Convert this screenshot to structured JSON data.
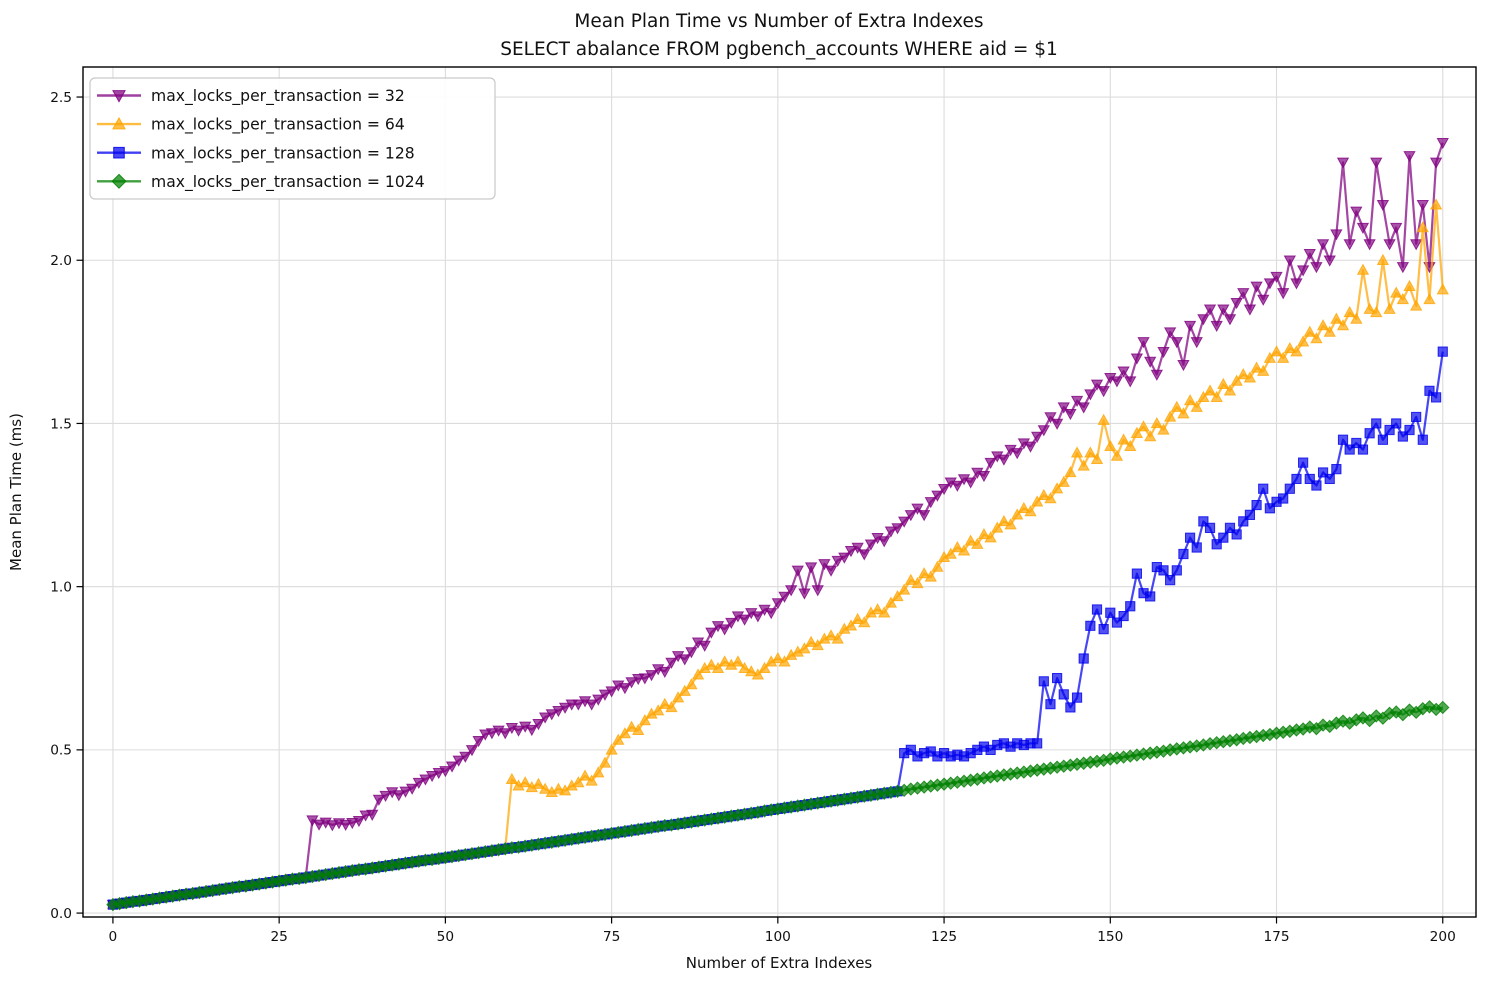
{
  "chart_data": {
    "type": "line",
    "title": "Mean Plan Time vs Number of Extra Indexes",
    "subtitle": "SELECT abalance FROM pgbench_accounts WHERE aid = $1",
    "xlabel": "Number of Extra Indexes",
    "ylabel": "Mean Plan Time (ms)",
    "x_description": "x = integer index 0..200 (number of extra indexes)",
    "xticks": [
      0,
      25,
      50,
      75,
      100,
      125,
      150,
      175,
      200
    ],
    "yticks": [
      0.0,
      0.5,
      1.0,
      1.5,
      2.0,
      2.5
    ],
    "xlim": [
      -4.5,
      205
    ],
    "ylim": [
      -0.012,
      2.592
    ],
    "grid": true,
    "legend_position": "upper left",
    "baseline_note": "All four series share this common linear ramp; each series follows 'baseline' for x < start, then continues with its own 'post_values' from x = start.",
    "baseline": [
      0.026,
      0.029,
      0.032,
      0.035,
      0.037,
      0.04,
      0.043,
      0.046,
      0.049,
      0.052,
      0.055,
      0.058,
      0.06,
      0.063,
      0.066,
      0.069,
      0.072,
      0.075,
      0.078,
      0.081,
      0.083,
      0.086,
      0.089,
      0.092,
      0.095,
      0.098,
      0.101,
      0.104,
      0.106,
      0.109,
      0.112,
      0.115,
      0.118,
      0.121,
      0.124,
      0.127,
      0.13,
      0.133,
      0.135,
      0.138,
      0.141,
      0.144,
      0.147,
      0.15,
      0.153,
      0.156,
      0.159,
      0.162,
      0.164,
      0.167,
      0.17,
      0.173,
      0.176,
      0.179,
      0.182,
      0.185,
      0.188,
      0.191,
      0.194,
      0.197,
      0.2,
      0.202,
      0.205,
      0.208,
      0.211,
      0.214,
      0.217,
      0.22,
      0.223,
      0.226,
      0.229,
      0.232,
      0.235,
      0.238,
      0.241,
      0.244,
      0.247,
      0.25,
      0.253,
      0.256,
      0.259,
      0.262,
      0.265,
      0.268,
      0.27,
      0.273,
      0.276,
      0.279,
      0.282,
      0.285,
      0.288,
      0.291,
      0.294,
      0.297,
      0.3,
      0.303,
      0.306,
      0.309,
      0.313,
      0.316,
      0.319,
      0.322,
      0.325,
      0.328,
      0.331,
      0.334,
      0.337,
      0.34,
      0.343,
      0.346,
      0.349,
      0.352,
      0.355,
      0.358,
      0.361,
      0.364,
      0.367,
      0.37,
      0.373,
      0.376,
      0.38,
      0.383,
      0.386,
      0.389,
      0.392,
      0.395,
      0.398,
      0.401,
      0.404,
      0.407,
      0.41,
      0.414,
      0.417,
      0.42,
      0.423,
      0.426,
      0.429,
      0.432,
      0.435,
      0.438,
      0.441,
      0.444,
      0.447,
      0.45,
      0.453,
      0.456,
      0.459,
      0.462,
      0.465,
      0.468,
      0.472,
      0.475,
      0.478,
      0.481,
      0.484,
      0.487,
      0.49,
      0.493,
      0.496,
      0.5,
      0.503,
      0.506,
      0.509,
      0.512,
      0.515,
      0.519,
      0.522,
      0.525,
      0.528,
      0.531,
      0.535,
      0.538,
      0.541,
      0.544,
      0.547,
      0.551,
      0.554,
      0.557,
      0.561,
      0.564,
      0.567,
      0.57,
      0.574,
      0.577,
      0.58,
      0.583,
      0.587,
      0.59,
      0.593,
      0.597,
      0.6,
      0.603,
      0.607,
      0.61,
      0.614,
      0.617,
      0.62,
      0.624,
      0.627,
      0.63,
      0.634
    ],
    "series": [
      {
        "label": "max_locks_per_transaction = 32",
        "color": "#800080",
        "marker": "triangle-down",
        "start": 30,
        "post_values": [
          0.285,
          0.272,
          0.278,
          0.27,
          0.276,
          0.271,
          0.277,
          0.283,
          0.3,
          0.302,
          0.348,
          0.36,
          0.371,
          0.362,
          0.373,
          0.382,
          0.4,
          0.41,
          0.421,
          0.43,
          0.436,
          0.45,
          0.468,
          0.48,
          0.5,
          0.528,
          0.548,
          0.552,
          0.56,
          0.552,
          0.568,
          0.56,
          0.572,
          0.562,
          0.58,
          0.6,
          0.61,
          0.62,
          0.63,
          0.64,
          0.64,
          0.65,
          0.64,
          0.655,
          0.67,
          0.68,
          0.698,
          0.69,
          0.708,
          0.718,
          0.72,
          0.73,
          0.748,
          0.74,
          0.768,
          0.788,
          0.778,
          0.8,
          0.83,
          0.82,
          0.86,
          0.88,
          0.87,
          0.89,
          0.91,
          0.9,
          0.92,
          0.91,
          0.93,
          0.92,
          0.95,
          0.97,
          0.99,
          1.05,
          0.98,
          1.06,
          0.99,
          1.07,
          1.05,
          1.08,
          1.09,
          1.11,
          1.12,
          1.1,
          1.13,
          1.15,
          1.14,
          1.17,
          1.18,
          1.2,
          1.22,
          1.24,
          1.22,
          1.26,
          1.28,
          1.3,
          1.32,
          1.31,
          1.33,
          1.32,
          1.35,
          1.34,
          1.38,
          1.4,
          1.39,
          1.42,
          1.41,
          1.44,
          1.43,
          1.46,
          1.48,
          1.52,
          1.5,
          1.55,
          1.53,
          1.57,
          1.55,
          1.59,
          1.62,
          1.6,
          1.64,
          1.63,
          1.66,
          1.63,
          1.7,
          1.75,
          1.69,
          1.65,
          1.72,
          1.78,
          1.75,
          1.68,
          1.8,
          1.75,
          1.82,
          1.85,
          1.8,
          1.85,
          1.82,
          1.87,
          1.9,
          1.85,
          1.92,
          1.88,
          1.93,
          1.95,
          1.9,
          2.0,
          1.93,
          1.97,
          2.02,
          1.98,
          2.05,
          2.0,
          2.08,
          2.3,
          2.05,
          2.15,
          2.1,
          2.05,
          2.3,
          2.17,
          2.05,
          2.1,
          1.98,
          2.32,
          2.05,
          2.17,
          1.98,
          2.3,
          2.36
        ]
      },
      {
        "label": "max_locks_per_transaction = 64",
        "color": "#ffa500",
        "marker": "triangle-up",
        "start": 60,
        "post_values": [
          0.41,
          0.39,
          0.4,
          0.385,
          0.395,
          0.38,
          0.37,
          0.38,
          0.375,
          0.39,
          0.4,
          0.42,
          0.405,
          0.43,
          0.46,
          0.5,
          0.53,
          0.55,
          0.57,
          0.56,
          0.59,
          0.61,
          0.62,
          0.64,
          0.63,
          0.66,
          0.68,
          0.7,
          0.73,
          0.75,
          0.76,
          0.75,
          0.77,
          0.76,
          0.77,
          0.75,
          0.74,
          0.73,
          0.75,
          0.77,
          0.78,
          0.77,
          0.79,
          0.8,
          0.81,
          0.83,
          0.82,
          0.84,
          0.85,
          0.84,
          0.87,
          0.88,
          0.9,
          0.89,
          0.92,
          0.93,
          0.92,
          0.95,
          0.97,
          0.99,
          1.02,
          1.01,
          1.04,
          1.03,
          1.06,
          1.09,
          1.1,
          1.12,
          1.11,
          1.14,
          1.13,
          1.16,
          1.15,
          1.18,
          1.2,
          1.19,
          1.22,
          1.24,
          1.23,
          1.26,
          1.28,
          1.27,
          1.3,
          1.32,
          1.35,
          1.41,
          1.37,
          1.41,
          1.39,
          1.51,
          1.43,
          1.4,
          1.45,
          1.43,
          1.47,
          1.49,
          1.46,
          1.5,
          1.48,
          1.52,
          1.55,
          1.53,
          1.57,
          1.55,
          1.58,
          1.6,
          1.58,
          1.62,
          1.6,
          1.63,
          1.65,
          1.64,
          1.67,
          1.66,
          1.7,
          1.72,
          1.7,
          1.73,
          1.72,
          1.75,
          1.78,
          1.76,
          1.8,
          1.78,
          1.82,
          1.8,
          1.84,
          1.82,
          1.97,
          1.85,
          1.84,
          2.0,
          1.85,
          1.9,
          1.88,
          1.92,
          1.86,
          2.1,
          1.88,
          2.17,
          1.91
        ]
      },
      {
        "label": "max_locks_per_transaction = 128",
        "color": "#0000ee",
        "marker": "square",
        "start": 119,
        "post_values": [
          0.49,
          0.5,
          0.48,
          0.49,
          0.495,
          0.48,
          0.49,
          0.48,
          0.485,
          0.48,
          0.49,
          0.5,
          0.51,
          0.5,
          0.515,
          0.52,
          0.51,
          0.52,
          0.515,
          0.52,
          0.52,
          0.71,
          0.64,
          0.72,
          0.67,
          0.63,
          0.66,
          0.78,
          0.88,
          0.93,
          0.87,
          0.92,
          0.89,
          0.91,
          0.94,
          1.04,
          0.98,
          0.97,
          1.06,
          1.05,
          1.02,
          1.05,
          1.1,
          1.15,
          1.12,
          1.2,
          1.18,
          1.13,
          1.15,
          1.18,
          1.16,
          1.2,
          1.22,
          1.25,
          1.3,
          1.24,
          1.26,
          1.27,
          1.3,
          1.33,
          1.38,
          1.33,
          1.31,
          1.35,
          1.33,
          1.36,
          1.45,
          1.42,
          1.44,
          1.42,
          1.47,
          1.5,
          1.45,
          1.48,
          1.5,
          1.46,
          1.48,
          1.52,
          1.45,
          1.6,
          1.58,
          1.72
        ]
      },
      {
        "label": "max_locks_per_transaction = 1024",
        "color": "#008000",
        "marker": "diamond",
        "start": 180,
        "post_values": [
          0.57,
          0.565,
          0.576,
          0.572,
          0.582,
          0.588,
          0.582,
          0.592,
          0.598,
          0.59,
          0.604,
          0.597,
          0.612,
          0.616,
          0.608,
          0.622,
          0.615,
          0.626,
          0.632,
          0.624,
          0.63
        ]
      }
    ]
  }
}
